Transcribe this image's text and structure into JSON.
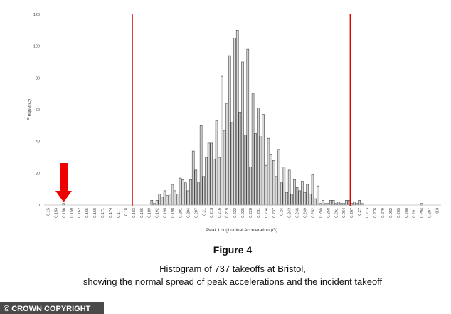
{
  "chart_data": {
    "type": "bar",
    "y_label": "Frequency",
    "x_label": "Peak Longitudinal Acceleration (G)",
    "figure_label": "Figure 4",
    "caption": [
      "Histogram of 737 takeoffs at Bristol,",
      "showing the normal spread of peak accelerations and the incident takeoff"
    ],
    "credit": "© CROWN COPYRIGHT",
    "color": "#d9d9d9",
    "edge_color": "#404040",
    "x": [
      0.156,
      0.19,
      0.191,
      0.192,
      0.193,
      0.194,
      0.195,
      0.196,
      0.197,
      0.198,
      0.199,
      0.2,
      0.201,
      0.202,
      0.203,
      0.204,
      0.205,
      0.206,
      0.207,
      0.208,
      0.209,
      0.21,
      0.211,
      0.212,
      0.213,
      0.214,
      0.215,
      0.216,
      0.217,
      0.218,
      0.219,
      0.22,
      0.221,
      0.222,
      0.223,
      0.224,
      0.225,
      0.226,
      0.227,
      0.228,
      0.229,
      0.23,
      0.231,
      0.232,
      0.233,
      0.234,
      0.235,
      0.236,
      0.237,
      0.238,
      0.239,
      0.24,
      0.241,
      0.242,
      0.243,
      0.244,
      0.245,
      0.246,
      0.247,
      0.248,
      0.249,
      0.25,
      0.251,
      0.252,
      0.253,
      0.254,
      0.255,
      0.256,
      0.257,
      0.258,
      0.259,
      0.26,
      0.261,
      0.262,
      0.263,
      0.264,
      0.265,
      0.266,
      0.267,
      0.268,
      0.269,
      0.27,
      0.271,
      0.294
    ],
    "values": [
      1,
      3,
      1,
      3,
      7,
      5,
      9,
      6,
      7,
      13,
      9,
      7,
      17,
      16,
      14,
      9,
      16,
      34,
      22,
      14,
      50,
      18,
      30,
      39,
      39,
      29,
      53,
      30,
      81,
      47,
      64,
      94,
      52,
      105,
      110,
      58,
      90,
      44,
      98,
      24,
      70,
      45,
      61,
      43,
      57,
      25,
      42,
      32,
      28,
      18,
      35,
      14,
      24,
      8,
      22,
      7,
      16,
      11,
      9,
      15,
      8,
      13,
      7,
      19,
      4,
      12,
      1,
      3,
      1,
      1,
      3,
      3,
      1,
      2,
      1,
      1,
      3,
      3,
      1,
      2,
      1,
      3,
      1,
      1
    ],
    "xlim": [
      0.1485,
      0.3015
    ],
    "xticks": [
      0.15,
      0.153,
      0.156,
      0.159,
      0.162,
      0.165,
      0.168,
      0.171,
      0.174,
      0.177,
      0.18,
      0.183,
      0.186,
      0.189,
      0.192,
      0.195,
      0.198,
      0.201,
      0.204,
      0.207,
      0.21,
      0.213,
      0.216,
      0.219,
      0.222,
      0.225,
      0.228,
      0.231,
      0.234,
      0.237,
      0.24,
      0.243,
      0.246,
      0.249,
      0.252,
      0.255,
      0.258,
      0.261,
      0.264,
      0.267,
      0.27,
      0.273,
      0.276,
      0.279,
      0.282,
      0.285,
      0.288,
      0.291,
      0.294,
      0.297,
      0.3
    ],
    "ylim": [
      0,
      120
    ],
    "yticks": [
      0,
      20,
      40,
      60,
      80,
      100,
      120
    ],
    "grid": false,
    "markers": {
      "x": [
        0.1825,
        0.2665
      ],
      "color": "#e00000"
    }
  }
}
